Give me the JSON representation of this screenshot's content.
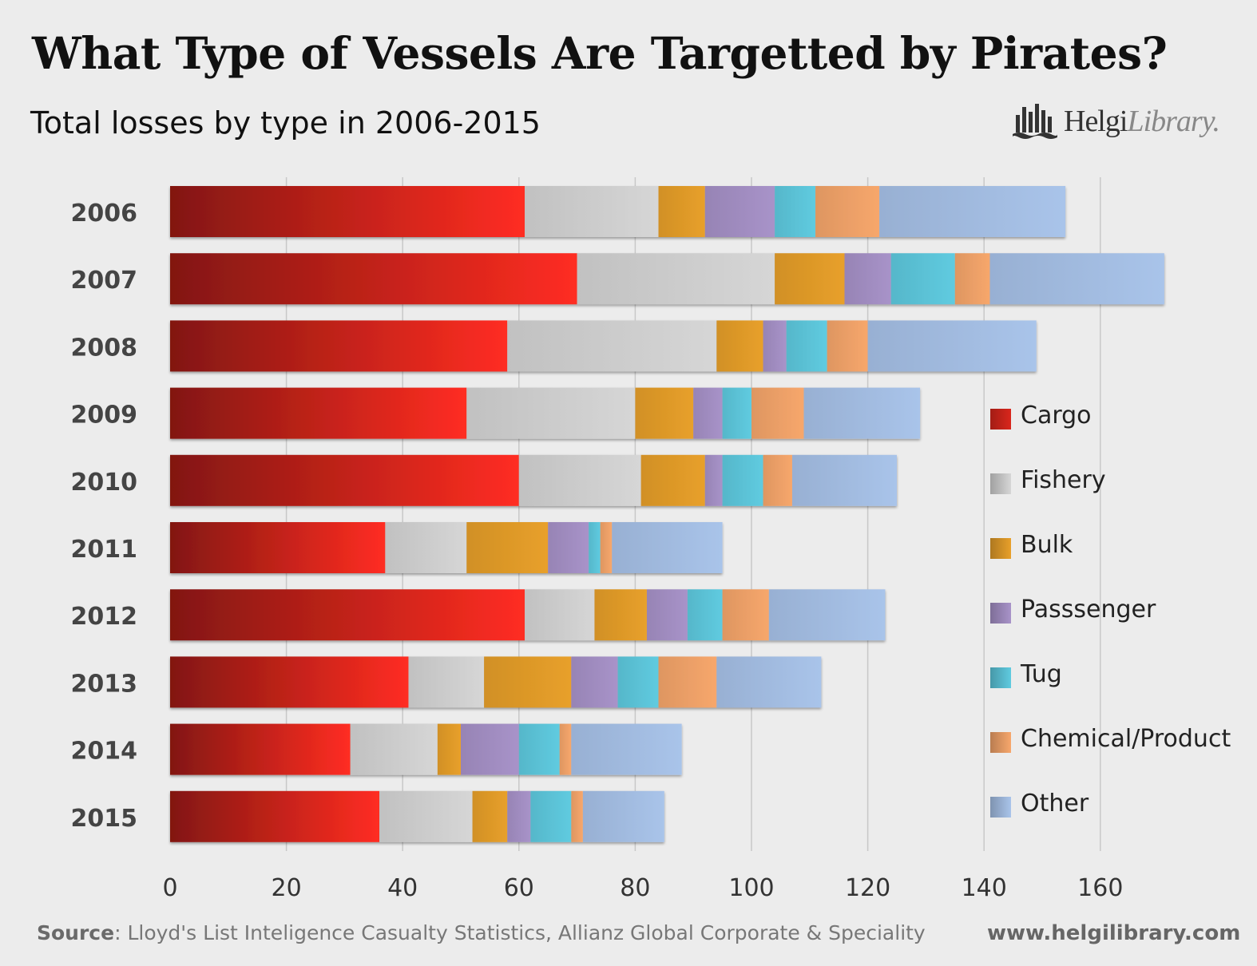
{
  "header": {
    "title": "What Type of Vessels Are Targetted by Pirates?",
    "subtitle": "Total losses by type in 2006-2015",
    "logo_bold": "Helgi",
    "logo_light": "Library."
  },
  "footer": {
    "source_label": "Source",
    "source_text": ": Lloyd's List Inteligence Casualty Statistics, Allianz Global Corporate & Speciality",
    "website": "www.helgilibrary.com"
  },
  "chart_data": {
    "type": "bar",
    "orientation": "horizontal",
    "stacked": true,
    "title": "What Type of Vessels Are Targetted by Pirates?",
    "subtitle": "Total losses by type in 2006-2015",
    "categories": [
      "2006",
      "2007",
      "2008",
      "2009",
      "2010",
      "2011",
      "2012",
      "2013",
      "2014",
      "2015"
    ],
    "xlim": [
      0,
      170
    ],
    "xticks": [
      0,
      20,
      40,
      60,
      80,
      100,
      120,
      140,
      160
    ],
    "grid": true,
    "legend_position": "right",
    "series": [
      {
        "name": "Cargo",
        "color": "#d9261c",
        "values": [
          61,
          70,
          58,
          51,
          60,
          37,
          61,
          41,
          31,
          36
        ]
      },
      {
        "name": "Fishery",
        "color": "#d6d6d6",
        "values": [
          23,
          34,
          36,
          29,
          21,
          14,
          12,
          13,
          15,
          16
        ]
      },
      {
        "name": "Bulk",
        "color": "#e8a02a",
        "values": [
          8,
          12,
          8,
          10,
          11,
          14,
          9,
          15,
          4,
          6
        ]
      },
      {
        "name": "Passsenger",
        "color": "#a893c9",
        "values": [
          12,
          8,
          4,
          5,
          3,
          7,
          7,
          8,
          10,
          4
        ]
      },
      {
        "name": "Tug",
        "color": "#5fcbe0",
        "values": [
          7,
          11,
          7,
          5,
          7,
          2,
          6,
          7,
          7,
          7
        ]
      },
      {
        "name": "Chemical/Product",
        "color": "#f7a76c",
        "values": [
          11,
          6,
          7,
          9,
          5,
          2,
          8,
          10,
          2,
          2
        ]
      },
      {
        "name": "Other",
        "color": "#a9c4ea",
        "values": [
          32,
          30,
          29,
          20,
          18,
          19,
          20,
          18,
          19,
          14
        ]
      }
    ]
  }
}
